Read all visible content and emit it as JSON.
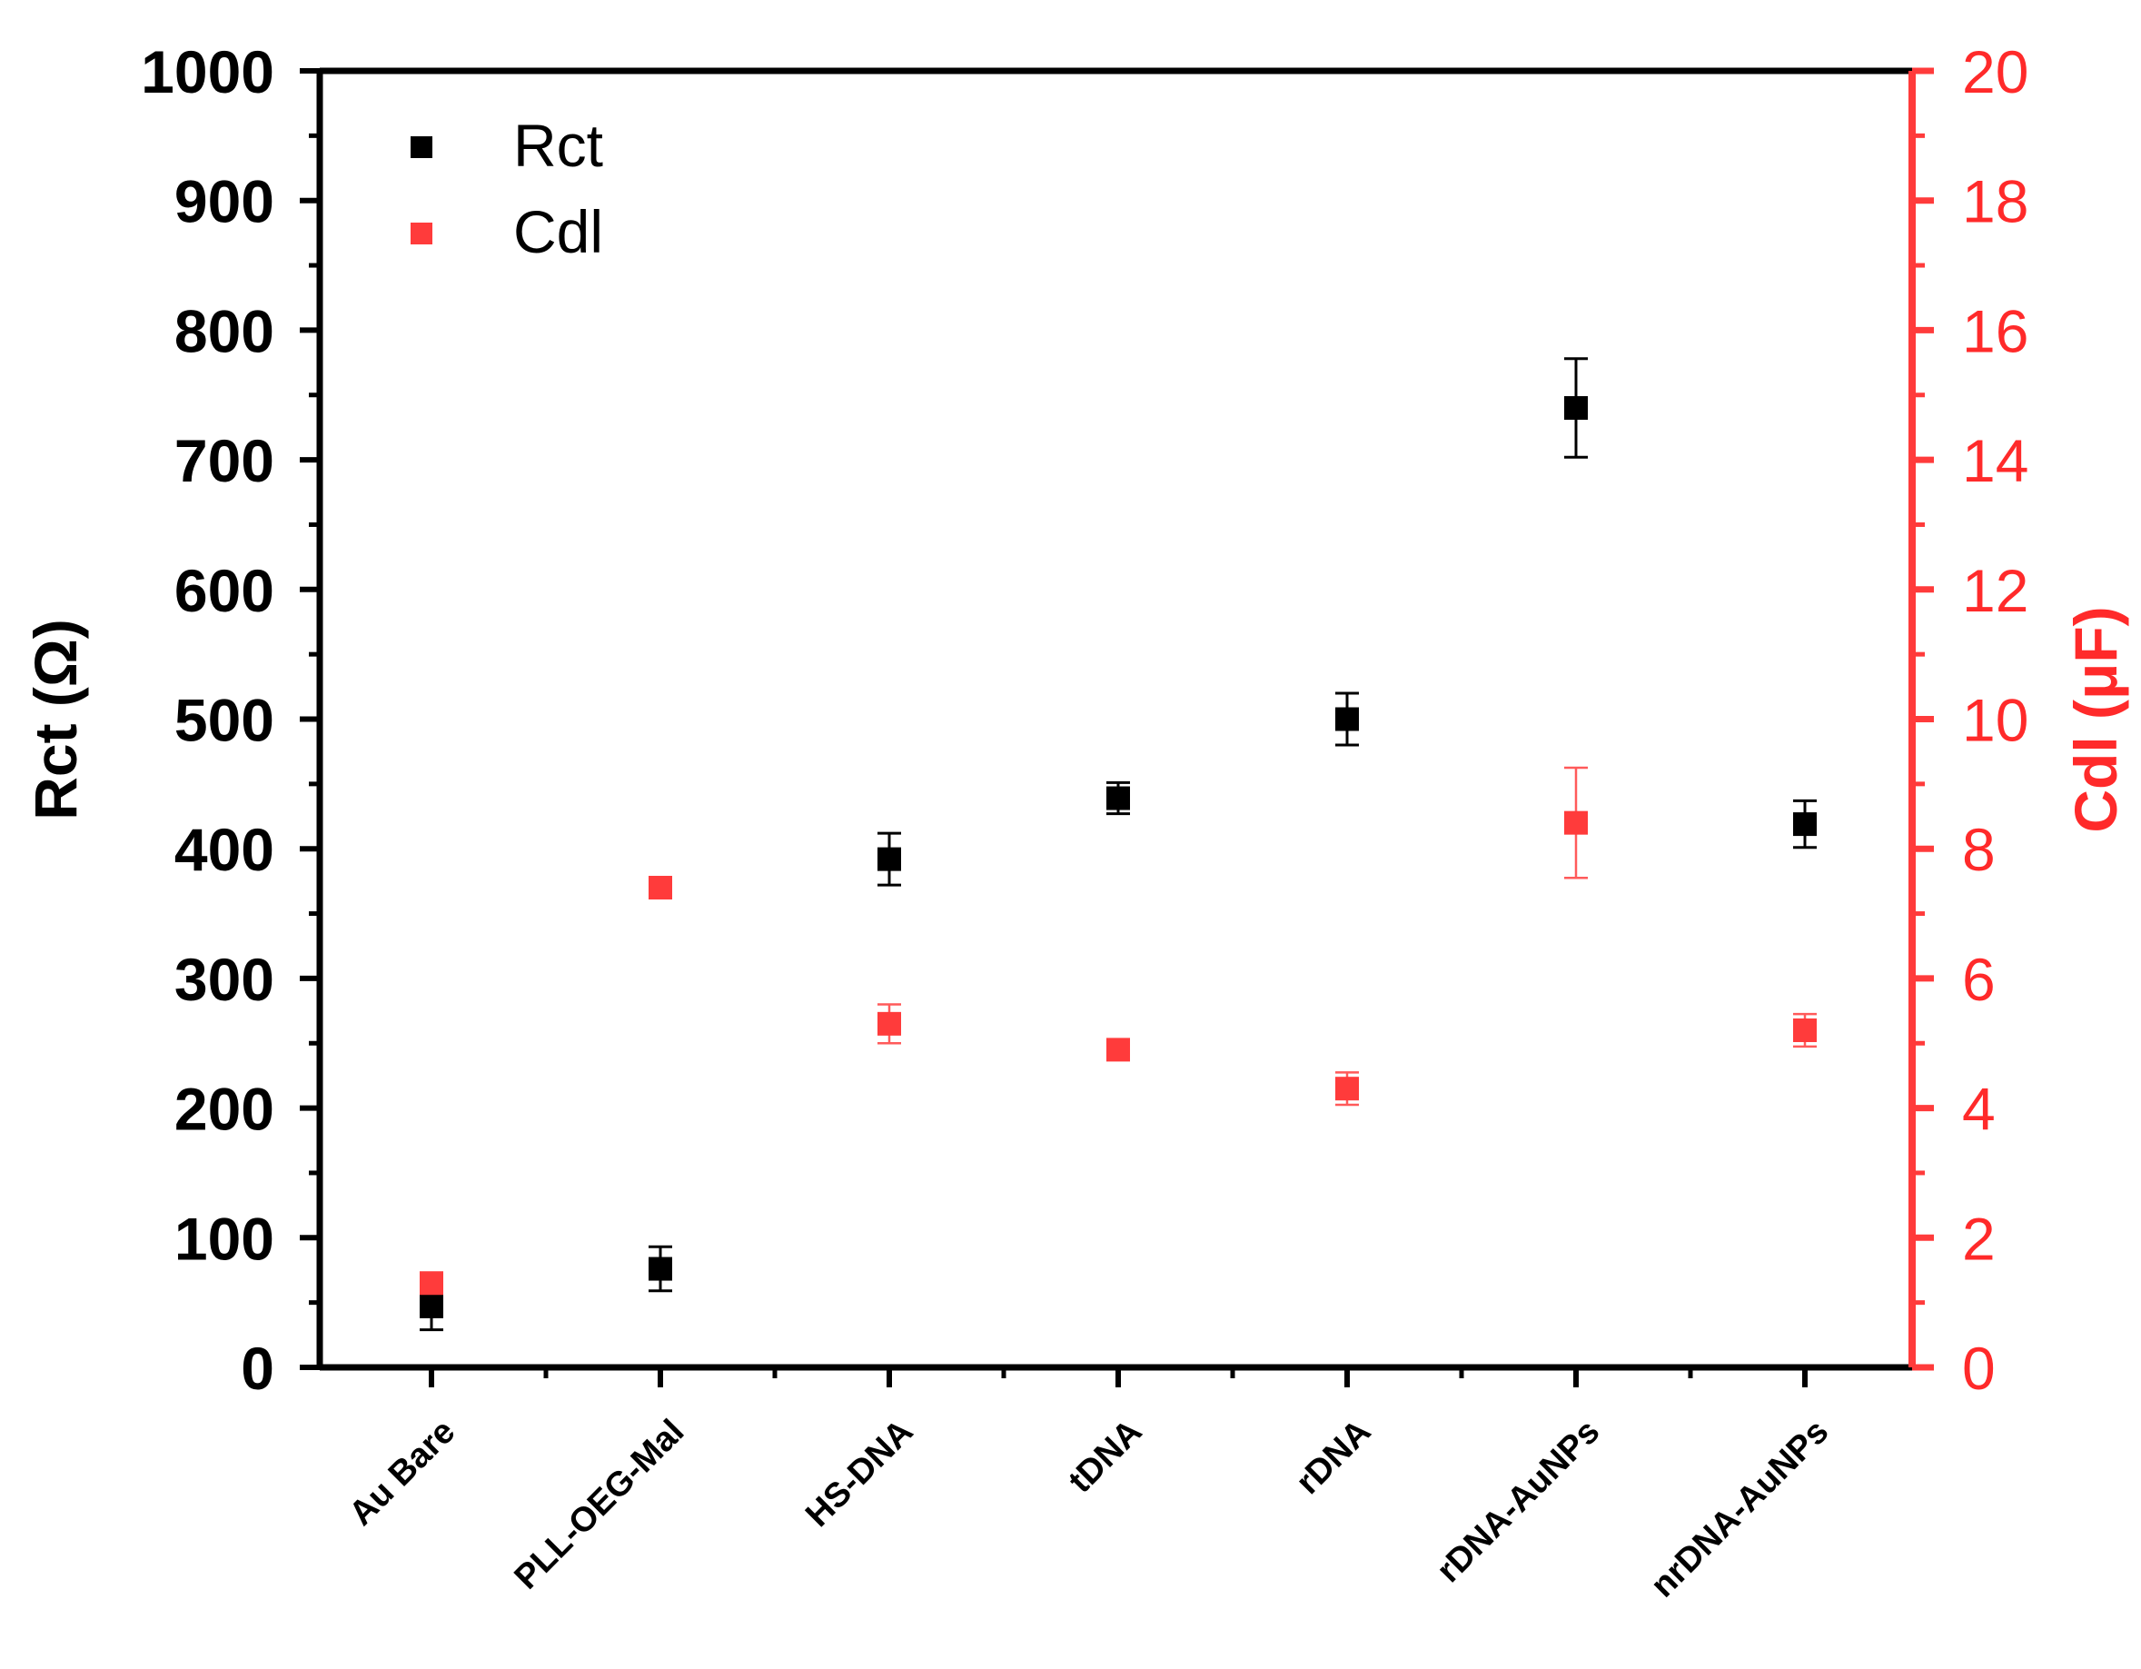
{
  "chart_data": {
    "type": "scatter",
    "categories": [
      "Au Bare",
      "PLL-OEG-Mal",
      "HS-DNA",
      "tDNA",
      "rDNA",
      "rDNA-AuNPs",
      "nrDNA-AuNPs"
    ],
    "series": [
      {
        "name": "Rct",
        "axis": "left",
        "color": "#000000",
        "values": [
          47,
          76,
          392,
          439,
          500,
          740,
          419
        ],
        "errors": [
          18,
          17,
          20,
          12,
          20,
          38,
          18
        ]
      },
      {
        "name": "Cdl",
        "axis": "right",
        "color": "#ff3b3b",
        "values": [
          1.3,
          7.4,
          5.3,
          4.9,
          4.3,
          8.4,
          5.2
        ],
        "errors": [
          0.1,
          0.15,
          0.3,
          0.1,
          0.25,
          0.85,
          0.25
        ]
      }
    ],
    "ylabel_left": "Rct (Ω)",
    "ylabel_right": "Cdl (μF)",
    "ylim_left": [
      0,
      1000
    ],
    "ylim_right": [
      0,
      20
    ],
    "yticks_left": [
      "0",
      "100",
      "200",
      "300",
      "400",
      "500",
      "600",
      "700",
      "800",
      "900",
      "1000"
    ],
    "yticks_right": [
      "0",
      "2",
      "4",
      "6",
      "8",
      "10",
      "12",
      "14",
      "16",
      "18",
      "20"
    ],
    "legend_position": "top-left",
    "grid": false
  }
}
